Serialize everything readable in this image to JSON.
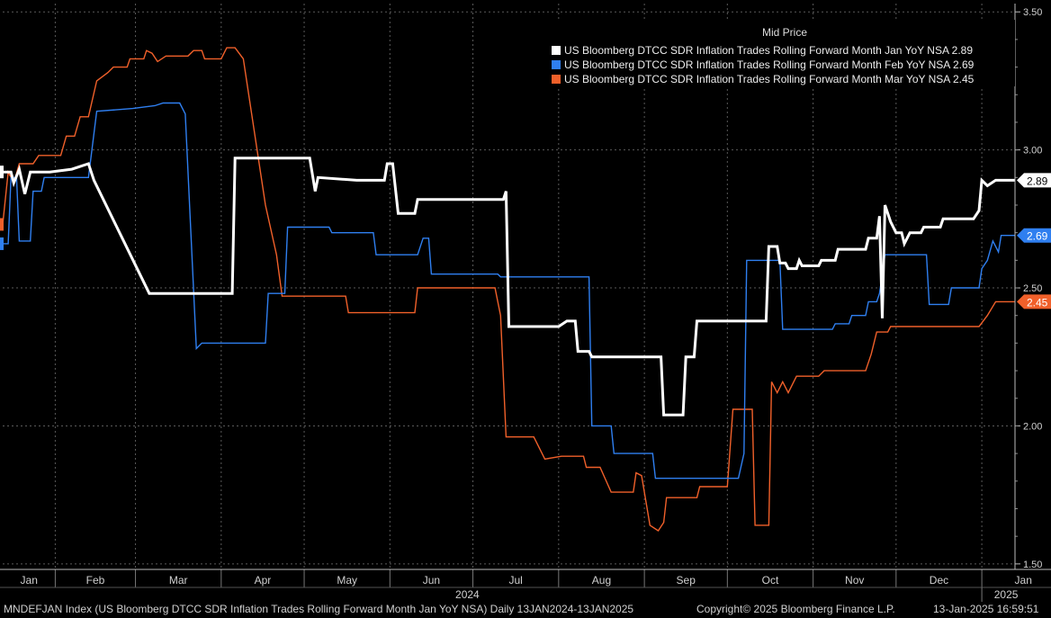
{
  "chart_data": {
    "type": "line",
    "legend_title": "Mid Price",
    "legend_position": "top-right",
    "grid": true,
    "ylim": [
      1.48,
      3.53
    ],
    "y_ticks": [
      "3.50",
      "3.00",
      "2.50",
      "2.00",
      "1.50"
    ],
    "month_labels": [
      "Jan",
      "Feb",
      "Mar",
      "Apr",
      "May",
      "Jun",
      "Jul",
      "Aug",
      "Sep",
      "Oct",
      "Nov",
      "Dec",
      "Jan"
    ],
    "year_labels": [
      "2024",
      "2025"
    ],
    "series": [
      {
        "name": "US Bloomberg DTCC SDR Inflation Trades Rolling Forward Month Jan YoY NSA",
        "last_label": "2.89",
        "color": "#ffffff",
        "width": 3,
        "points": [
          [
            "2024-01-13",
            2.92
          ],
          [
            "2024-01-16",
            2.92
          ],
          [
            "2024-01-17",
            2.88
          ],
          [
            "2024-01-19",
            2.93
          ],
          [
            "2024-01-21",
            2.84
          ],
          [
            "2024-01-23",
            2.92
          ],
          [
            "2024-01-30",
            2.92
          ],
          [
            "2024-02-07",
            2.93
          ],
          [
            "2024-02-13",
            2.95
          ],
          [
            "2024-02-15",
            2.89
          ],
          [
            "2024-03-06",
            2.48
          ],
          [
            "2024-04-05",
            2.48
          ],
          [
            "2024-04-06",
            2.97
          ],
          [
            "2024-05-03",
            2.97
          ],
          [
            "2024-05-05",
            2.85
          ],
          [
            "2024-05-06",
            2.9
          ],
          [
            "2024-05-20",
            2.89
          ],
          [
            "2024-05-30",
            2.89
          ],
          [
            "2024-05-31",
            2.95
          ],
          [
            "2024-06-02",
            2.95
          ],
          [
            "2024-06-04",
            2.77
          ],
          [
            "2024-06-10",
            2.77
          ],
          [
            "2024-06-11",
            2.82
          ],
          [
            "2024-07-12",
            2.82
          ],
          [
            "2024-07-13",
            2.85
          ],
          [
            "2024-07-14",
            2.36
          ],
          [
            "2024-08-01",
            2.36
          ],
          [
            "2024-08-04",
            2.38
          ],
          [
            "2024-08-07",
            2.38
          ],
          [
            "2024-08-08",
            2.27
          ],
          [
            "2024-08-12",
            2.27
          ],
          [
            "2024-08-13",
            2.25
          ],
          [
            "2024-09-07",
            2.25
          ],
          [
            "2024-09-08",
            2.04
          ],
          [
            "2024-09-15",
            2.04
          ],
          [
            "2024-09-16",
            2.25
          ],
          [
            "2024-09-19",
            2.25
          ],
          [
            "2024-09-20",
            2.38
          ],
          [
            "2024-10-15",
            2.38
          ],
          [
            "2024-10-16",
            2.65
          ],
          [
            "2024-10-19",
            2.65
          ],
          [
            "2024-10-20",
            2.59
          ],
          [
            "2024-10-22",
            2.59
          ],
          [
            "2024-10-23",
            2.57
          ],
          [
            "2024-10-26",
            2.57
          ],
          [
            "2024-10-27",
            2.6
          ],
          [
            "2024-10-28",
            2.58
          ],
          [
            "2024-11-03",
            2.58
          ],
          [
            "2024-11-04",
            2.6
          ],
          [
            "2024-11-09",
            2.6
          ],
          [
            "2024-11-10",
            2.64
          ],
          [
            "2024-11-20",
            2.64
          ],
          [
            "2024-11-21",
            2.68
          ],
          [
            "2024-11-24",
            2.68
          ],
          [
            "2024-11-25",
            2.76
          ],
          [
            "2024-11-26",
            2.39
          ],
          [
            "2024-11-27",
            2.8
          ],
          [
            "2024-11-29",
            2.74
          ],
          [
            "2024-12-01",
            2.7
          ],
          [
            "2024-12-03",
            2.7
          ],
          [
            "2024-12-04",
            2.66
          ],
          [
            "2024-12-06",
            2.7
          ],
          [
            "2024-12-10",
            2.7
          ],
          [
            "2024-12-11",
            2.72
          ],
          [
            "2024-12-17",
            2.72
          ],
          [
            "2024-12-18",
            2.75
          ],
          [
            "2024-12-29",
            2.75
          ],
          [
            "2024-12-31",
            2.78
          ],
          [
            "2025-01-01",
            2.89
          ],
          [
            "2025-01-03",
            2.87
          ],
          [
            "2025-01-06",
            2.89
          ],
          [
            "2025-01-13",
            2.89
          ]
        ]
      },
      {
        "name": "US Bloomberg DTCC SDR Inflation Trades Rolling Forward Month Feb YoY NSA",
        "last_label": "2.69",
        "color": "#2f7ff0",
        "width": 1.4,
        "points": [
          [
            "2024-01-13",
            2.66
          ],
          [
            "2024-01-15",
            2.66
          ],
          [
            "2024-01-16",
            2.9
          ],
          [
            "2024-01-18",
            2.9
          ],
          [
            "2024-01-19",
            2.67
          ],
          [
            "2024-01-23",
            2.67
          ],
          [
            "2024-01-24",
            2.85
          ],
          [
            "2024-01-27",
            2.85
          ],
          [
            "2024-01-28",
            2.9
          ],
          [
            "2024-02-13",
            2.9
          ],
          [
            "2024-02-16",
            3.14
          ],
          [
            "2024-02-29",
            3.15
          ],
          [
            "2024-03-08",
            3.16
          ],
          [
            "2024-03-11",
            3.17
          ],
          [
            "2024-03-17",
            3.17
          ],
          [
            "2024-03-19",
            3.13
          ],
          [
            "2024-03-23",
            2.28
          ],
          [
            "2024-03-25",
            2.3
          ],
          [
            "2024-04-17",
            2.3
          ],
          [
            "2024-04-18",
            2.48
          ],
          [
            "2024-04-24",
            2.48
          ],
          [
            "2024-04-25",
            2.72
          ],
          [
            "2024-05-10",
            2.72
          ],
          [
            "2024-05-11",
            2.7
          ],
          [
            "2024-05-26",
            2.7
          ],
          [
            "2024-05-27",
            2.62
          ],
          [
            "2024-06-11",
            2.62
          ],
          [
            "2024-06-13",
            2.68
          ],
          [
            "2024-06-15",
            2.68
          ],
          [
            "2024-06-16",
            2.55
          ],
          [
            "2024-07-10",
            2.55
          ],
          [
            "2024-07-11",
            2.54
          ],
          [
            "2024-08-12",
            2.54
          ],
          [
            "2024-08-13",
            2.0
          ],
          [
            "2024-08-20",
            2.0
          ],
          [
            "2024-08-21",
            1.9
          ],
          [
            "2024-09-04",
            1.9
          ],
          [
            "2024-09-05",
            1.81
          ],
          [
            "2024-10-05",
            1.81
          ],
          [
            "2024-10-07",
            1.9
          ],
          [
            "2024-10-08",
            2.6
          ],
          [
            "2024-10-20",
            2.6
          ],
          [
            "2024-10-21",
            2.35
          ],
          [
            "2024-11-08",
            2.35
          ],
          [
            "2024-11-09",
            2.37
          ],
          [
            "2024-11-14",
            2.37
          ],
          [
            "2024-11-15",
            2.4
          ],
          [
            "2024-11-20",
            2.4
          ],
          [
            "2024-11-21",
            2.45
          ],
          [
            "2024-11-24",
            2.45
          ],
          [
            "2024-11-25",
            2.48
          ],
          [
            "2024-11-27",
            2.62
          ],
          [
            "2024-12-12",
            2.62
          ],
          [
            "2024-12-13",
            2.44
          ],
          [
            "2024-12-20",
            2.44
          ],
          [
            "2024-12-21",
            2.5
          ],
          [
            "2024-12-31",
            2.5
          ],
          [
            "2025-01-01",
            2.57
          ],
          [
            "2025-01-03",
            2.6
          ],
          [
            "2025-01-05",
            2.67
          ],
          [
            "2025-01-07",
            2.63
          ],
          [
            "2025-01-08",
            2.69
          ],
          [
            "2025-01-13",
            2.69
          ]
        ]
      },
      {
        "name": "US Bloomberg DTCC SDR Inflation Trades Rolling Forward Month Mar YoY NSA",
        "last_label": "2.45",
        "color": "#f0602a",
        "width": 1.4,
        "points": [
          [
            "2024-01-13",
            2.73
          ],
          [
            "2024-01-15",
            2.92
          ],
          [
            "2024-01-17",
            2.88
          ],
          [
            "2024-01-19",
            2.95
          ],
          [
            "2024-01-24",
            2.95
          ],
          [
            "2024-01-26",
            2.98
          ],
          [
            "2024-02-03",
            2.98
          ],
          [
            "2024-02-05",
            3.05
          ],
          [
            "2024-02-08",
            3.05
          ],
          [
            "2024-02-10",
            3.12
          ],
          [
            "2024-02-13",
            3.12
          ],
          [
            "2024-02-16",
            3.25
          ],
          [
            "2024-02-20",
            3.28
          ],
          [
            "2024-02-22",
            3.3
          ],
          [
            "2024-02-27",
            3.3
          ],
          [
            "2024-02-28",
            3.33
          ],
          [
            "2024-03-04",
            3.33
          ],
          [
            "2024-03-05",
            3.36
          ],
          [
            "2024-03-07",
            3.35
          ],
          [
            "2024-03-09",
            3.32
          ],
          [
            "2024-03-12",
            3.34
          ],
          [
            "2024-03-20",
            3.34
          ],
          [
            "2024-03-22",
            3.36
          ],
          [
            "2024-03-25",
            3.36
          ],
          [
            "2024-03-26",
            3.33
          ],
          [
            "2024-04-01",
            3.33
          ],
          [
            "2024-04-03",
            3.37
          ],
          [
            "2024-04-06",
            3.37
          ],
          [
            "2024-04-09",
            3.33
          ],
          [
            "2024-04-17",
            2.8
          ],
          [
            "2024-04-21",
            2.62
          ],
          [
            "2024-04-23",
            2.47
          ],
          [
            "2024-05-16",
            2.47
          ],
          [
            "2024-05-17",
            2.41
          ],
          [
            "2024-06-10",
            2.41
          ],
          [
            "2024-06-11",
            2.5
          ],
          [
            "2024-07-09",
            2.5
          ],
          [
            "2024-07-11",
            2.4
          ],
          [
            "2024-07-13",
            1.96
          ],
          [
            "2024-07-23",
            1.96
          ],
          [
            "2024-07-27",
            1.88
          ],
          [
            "2024-08-02",
            1.89
          ],
          [
            "2024-08-10",
            1.89
          ],
          [
            "2024-08-11",
            1.85
          ],
          [
            "2024-08-16",
            1.85
          ],
          [
            "2024-08-20",
            1.76
          ],
          [
            "2024-08-28",
            1.76
          ],
          [
            "2024-08-29",
            1.83
          ],
          [
            "2024-08-31",
            1.82
          ],
          [
            "2024-09-03",
            1.64
          ],
          [
            "2024-09-06",
            1.62
          ],
          [
            "2024-09-08",
            1.65
          ],
          [
            "2024-09-09",
            1.74
          ],
          [
            "2024-09-20",
            1.74
          ],
          [
            "2024-09-21",
            1.78
          ],
          [
            "2024-10-01",
            1.78
          ],
          [
            "2024-10-03",
            2.06
          ],
          [
            "2024-10-10",
            2.06
          ],
          [
            "2024-10-11",
            1.64
          ],
          [
            "2024-10-16",
            1.64
          ],
          [
            "2024-10-17",
            2.16
          ],
          [
            "2024-10-19",
            2.12
          ],
          [
            "2024-10-21",
            2.16
          ],
          [
            "2024-10-23",
            2.12
          ],
          [
            "2024-10-26",
            2.18
          ],
          [
            "2024-11-03",
            2.18
          ],
          [
            "2024-11-05",
            2.2
          ],
          [
            "2024-11-20",
            2.2
          ],
          [
            "2024-11-22",
            2.26
          ],
          [
            "2024-11-24",
            2.34
          ],
          [
            "2024-11-28",
            2.34
          ],
          [
            "2024-11-29",
            2.36
          ],
          [
            "2024-12-31",
            2.36
          ],
          [
            "2025-01-03",
            2.4
          ],
          [
            "2025-01-06",
            2.45
          ],
          [
            "2025-01-13",
            2.45
          ]
        ]
      }
    ]
  },
  "footer": {
    "description": "MNDEFJAN Index (US Bloomberg DTCC SDR Inflation Trades Rolling Forward Month Jan YoY NSA)  Daily 13JAN2024-13JAN2025",
    "copyright": "Copyright© 2025 Bloomberg Finance L.P.",
    "timestamp": "13-Jan-2025 16:59:51"
  }
}
